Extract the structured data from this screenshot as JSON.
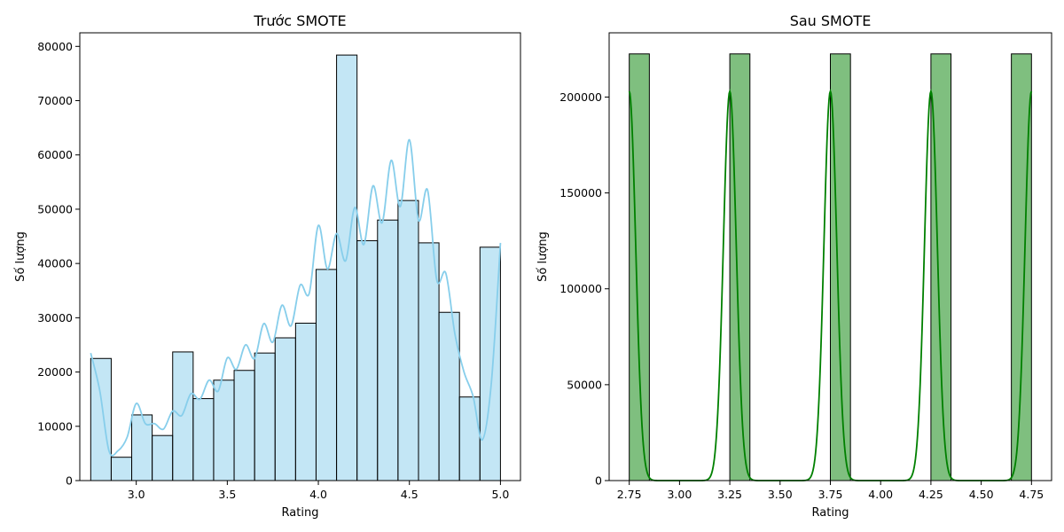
{
  "chart_data": [
    {
      "type": "bar",
      "title": "Trước SMOTE",
      "xlabel": "Rating",
      "ylabel": "Số lượng",
      "xlim": [
        2.69,
        5.11
      ],
      "ylim": [
        0,
        82500
      ],
      "xticks": [
        "3.0",
        "3.5",
        "4.0",
        "4.5",
        "5.0"
      ],
      "yticks": [
        "0",
        "10000",
        "20000",
        "30000",
        "40000",
        "50000",
        "60000",
        "70000",
        "80000"
      ],
      "bar_color": "#87ceeb",
      "kde_color": "#87ceeb",
      "bin_edges": [
        2.75,
        2.8625,
        2.975,
        3.0875,
        3.2,
        3.3125,
        3.425,
        3.5375,
        3.65,
        3.7625,
        3.875,
        3.9875,
        4.1,
        4.2125,
        4.325,
        4.4375,
        4.55,
        4.6625,
        4.775,
        4.8875,
        5.0
      ],
      "values": [
        22500,
        4300,
        12100,
        8300,
        23700,
        15100,
        18500,
        20300,
        23500,
        26300,
        29000,
        38900,
        78400,
        44200,
        48000,
        51600,
        43800,
        31000,
        15400,
        43000
      ],
      "kde": {
        "x": [
          2.75,
          2.8,
          2.85,
          2.9,
          2.95,
          3.0,
          3.05,
          3.1,
          3.15,
          3.2,
          3.25,
          3.3,
          3.35,
          3.4,
          3.45,
          3.5,
          3.55,
          3.6,
          3.65,
          3.7,
          3.75,
          3.8,
          3.85,
          3.9,
          3.95,
          4.0,
          4.05,
          4.1,
          4.15,
          4.2,
          4.25,
          4.3,
          4.35,
          4.4,
          4.45,
          4.5,
          4.55,
          4.6,
          4.65,
          4.7,
          4.75,
          4.8,
          4.85,
          4.9,
          4.95,
          5.0
        ],
        "y": [
          23500,
          16500,
          5500,
          5500,
          8000,
          14200,
          10500,
          10500,
          9500,
          12800,
          12000,
          16000,
          15000,
          18500,
          16500,
          22600,
          20500,
          25000,
          22500,
          28900,
          25500,
          32300,
          28500,
          36000,
          34500,
          47000,
          39000,
          45500,
          40500,
          50300,
          43500,
          54300,
          47500,
          59000,
          50500,
          62800,
          48000,
          53500,
          37000,
          38200,
          27000,
          20000,
          15500,
          7500,
          18000,
          43800
        ]
      }
    },
    {
      "type": "bar",
      "title": "Sau SMOTE",
      "xlabel": "Rating",
      "ylabel": "Số lượng",
      "xlim": [
        2.65,
        4.85
      ],
      "ylim": [
        0,
        233500
      ],
      "xticks": [
        "2.75",
        "3.00",
        "3.25",
        "3.50",
        "3.75",
        "4.00",
        "4.25",
        "4.50",
        "4.75"
      ],
      "yticks": [
        "0",
        "50000",
        "100000",
        "150000",
        "200000"
      ],
      "bar_color": "#008000",
      "kde_color": "#008000",
      "bin_edges": [
        2.75,
        2.85,
        2.95,
        3.05,
        3.15,
        3.25,
        3.35,
        3.45,
        3.55,
        3.65,
        3.75,
        3.85,
        3.95,
        4.05,
        4.15,
        4.25,
        4.35,
        4.45,
        4.55,
        4.65,
        4.75
      ],
      "values": [
        222500,
        0,
        0,
        0,
        0,
        222500,
        0,
        0,
        0,
        0,
        222500,
        0,
        0,
        0,
        0,
        222500,
        0,
        0,
        0,
        222500
      ],
      "kde": {
        "peaks": [
          2.75,
          3.25,
          3.75,
          4.25,
          4.75
        ],
        "peak_value": 203000,
        "bandwidth": 0.032
      }
    }
  ]
}
